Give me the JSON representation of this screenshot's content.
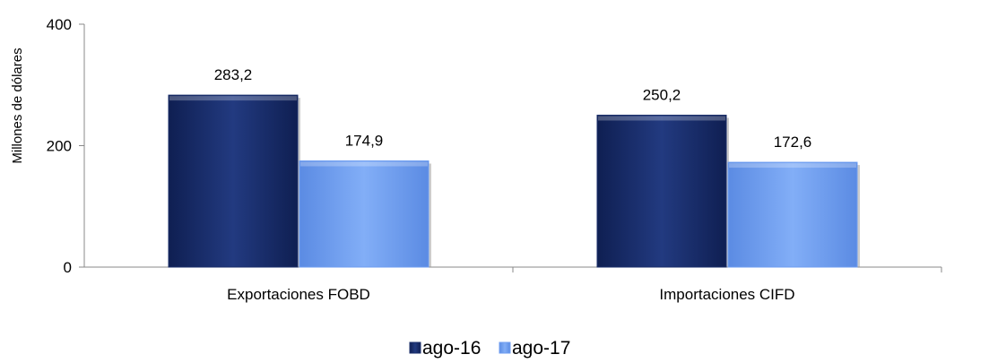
{
  "chart_data": {
    "type": "bar",
    "title": "",
    "xlabel": "",
    "ylabel": "Millones de dólares",
    "ylim": [
      0,
      400
    ],
    "yticks": [
      0,
      200,
      400
    ],
    "ytick_labels": [
      "0",
      "200",
      "400"
    ],
    "grid": false,
    "legend_position": "bottom",
    "categories": [
      "Exportaciones FOBD",
      "Importaciones CIFD"
    ],
    "series": [
      {
        "name": "ago-16",
        "values": [
          283.2,
          250.2
        ],
        "value_labels": [
          "283,2",
          "250,2"
        ],
        "color": "#1b2f6b"
      },
      {
        "name": "ago-17",
        "values": [
          174.9,
          172.6
        ],
        "value_labels": [
          "174,9",
          "172,6"
        ],
        "color": "#6f9ef0"
      }
    ]
  }
}
